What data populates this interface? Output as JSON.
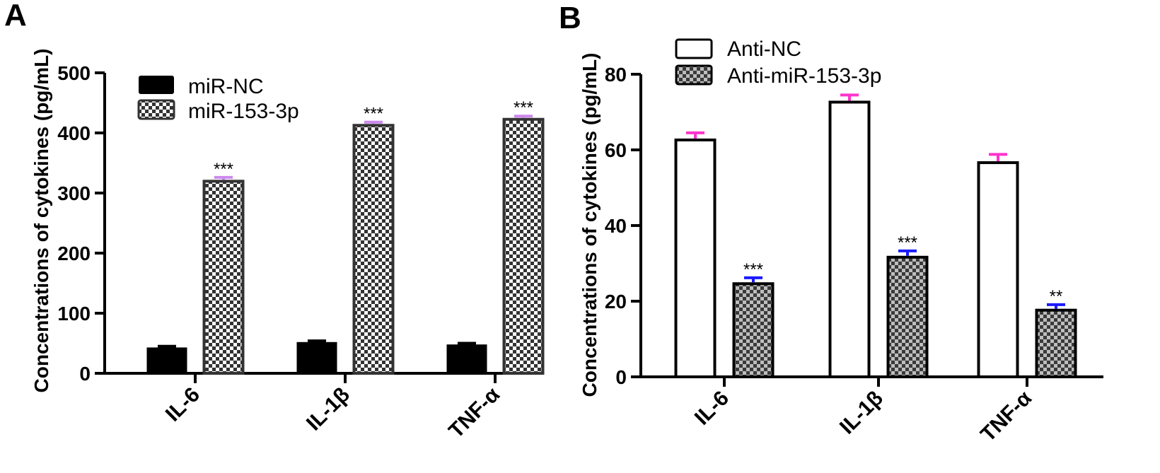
{
  "figure": {
    "colors": {
      "error_pink": "#ff33cc",
      "error_violet": "#cc88ee",
      "error_blue": "#1a1aff",
      "bar_dark": "#000000",
      "bar_outline": "#333333"
    }
  },
  "chart_data": [
    {
      "panel_label": "A",
      "type": "bar",
      "title": "",
      "xlabel": "",
      "ylabel": "Concentrations of cytokines (pg/mL)",
      "ylim": [
        0,
        500
      ],
      "yticks": [
        "0",
        "100",
        "200",
        "300",
        "400",
        "500"
      ],
      "categories": [
        "IL-6",
        "IL-1β",
        "TNF-α"
      ],
      "legend_position": "top-left",
      "grid": false,
      "series": [
        {
          "name": "miR-NC",
          "pattern": "solid-black",
          "values": [
            43,
            52,
            48
          ],
          "errors": [
            2,
            2,
            2
          ],
          "significance": [
            "",
            "",
            ""
          ]
        },
        {
          "name": "miR-153-3p",
          "pattern": "checker",
          "values": [
            322,
            415,
            425
          ],
          "errors": [
            4,
            3,
            3
          ],
          "significance": [
            "***",
            "***",
            "***"
          ]
        }
      ]
    },
    {
      "panel_label": "B",
      "type": "bar",
      "title": "",
      "xlabel": "",
      "ylabel": "Concentrations of cytokines (pg/mL)",
      "ylim": [
        0,
        80
      ],
      "yticks": [
        "0",
        "20",
        "40",
        "60",
        "80"
      ],
      "categories": [
        "IL-6",
        "IL-1β",
        "TNF-α"
      ],
      "legend_position": "top-left",
      "grid": false,
      "series": [
        {
          "name": "Anti-NC",
          "pattern": "open-white",
          "values": [
            63,
            73,
            57
          ],
          "errors": [
            1.5,
            1.5,
            1.8
          ],
          "significance": [
            "",
            "",
            ""
          ]
        },
        {
          "name": "Anti-miR-153-3p",
          "pattern": "gray-checker",
          "values": [
            25,
            32,
            18
          ],
          "errors": [
            1.2,
            1.3,
            1.1
          ],
          "significance": [
            "***",
            "***",
            "**"
          ]
        }
      ]
    }
  ]
}
